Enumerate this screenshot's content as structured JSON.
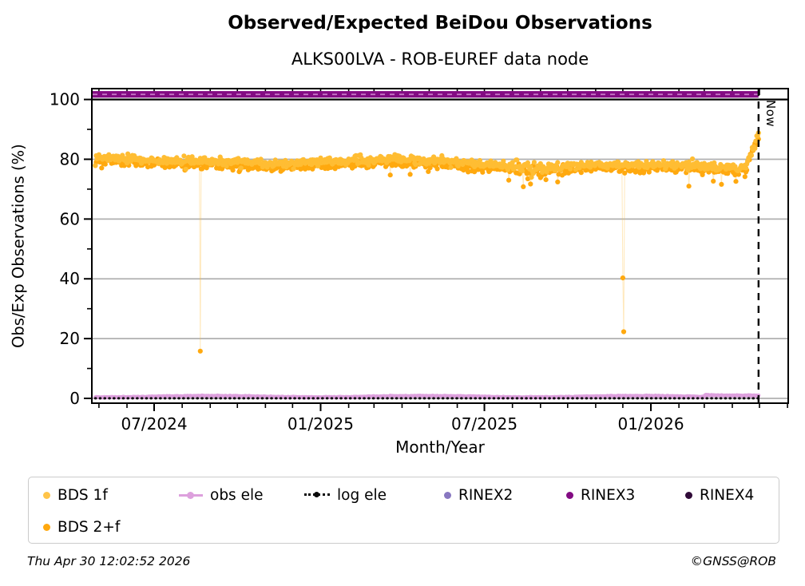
{
  "header": {
    "title": "Observed/Expected BeiDou Observations",
    "subtitle": "ALKS00LVA - ROB-EUREF data node"
  },
  "footer": {
    "timestamp": "Thu Apr 30 12:02:52 2026",
    "copyright": "©GNSS@ROB"
  },
  "legend": {
    "items": [
      {
        "label": "BDS 1f",
        "color": "#FFC449",
        "marker": "dot"
      },
      {
        "label": "obs ele",
        "color": "#DDA0DD",
        "marker": "line-dot"
      },
      {
        "label": "log ele",
        "color": "#0a0a0a",
        "marker": "dotted-line"
      },
      {
        "label": "RINEX2",
        "color": "#8877C0",
        "marker": "dot"
      },
      {
        "label": "RINEX3",
        "color": "#830B83",
        "marker": "dot"
      },
      {
        "label": "RINEX4",
        "color": "#300A38",
        "marker": "dot"
      },
      {
        "label": "BDS 2+f",
        "color": "#FFA80E",
        "marker": "dot"
      }
    ]
  },
  "chart_data": {
    "type": "scatter",
    "title": "Observed/Expected BeiDou Observations",
    "subtitle": "ALKS00LVA - ROB-EUREF data node",
    "xlabel": "Month/Year",
    "ylabel": "Obs/Exp Observations (%)",
    "ylim": [
      -1.6,
      103.6
    ],
    "x_range_dates": [
      "2024-04-24",
      "2026-06-02"
    ],
    "data_start_date": "2024-04-27",
    "now": {
      "date": "2026-04-30",
      "label": "Now"
    },
    "x_major_ticks": [
      {
        "label": "07/2024",
        "date": "2024-07-01"
      },
      {
        "label": "01/2025",
        "date": "2025-01-01"
      },
      {
        "label": "07/2025",
        "date": "2025-07-01"
      },
      {
        "label": "01/2026",
        "date": "2026-01-01"
      }
    ],
    "y_major_ticks": [
      0,
      20,
      40,
      60,
      80,
      100
    ],
    "y_minor_ticks": [
      10,
      30,
      50,
      70,
      90
    ],
    "grid": {
      "color": "#B0B0B0",
      "y_values": [
        0,
        20,
        40,
        60,
        80
      ]
    },
    "reference_line": {
      "y": 100,
      "color": "#000000"
    },
    "monthly_baseline": [
      [
        "2024-04",
        79.9
      ],
      [
        "2024-05",
        79.6
      ],
      [
        "2024-06",
        79.2
      ],
      [
        "2024-07",
        78.8
      ],
      [
        "2024-08",
        78.4
      ],
      [
        "2024-09",
        78.2
      ],
      [
        "2024-10",
        77.9
      ],
      [
        "2024-11",
        77.6
      ],
      [
        "2024-12",
        78.0
      ],
      [
        "2025-01",
        78.4
      ],
      [
        "2025-02",
        78.8
      ],
      [
        "2025-03",
        79.1
      ],
      [
        "2025-04",
        78.9
      ],
      [
        "2025-05",
        78.4
      ],
      [
        "2025-06",
        77.7
      ],
      [
        "2025-07",
        77.2
      ],
      [
        "2025-08",
        76.4
      ],
      [
        "2025-09",
        76.3
      ],
      [
        "2025-10",
        77.3
      ],
      [
        "2025-11",
        77.4
      ],
      [
        "2025-12",
        76.9
      ],
      [
        "2026-01",
        77.4
      ],
      [
        "2026-02",
        77.2
      ],
      [
        "2026-03",
        76.3
      ],
      [
        "2026-04",
        76.6
      ]
    ],
    "series": [
      {
        "name": "BDS 1f",
        "kind": "daily_scatter",
        "color": "#FFBD33",
        "offset": 1.0,
        "jitter": 1.25
      },
      {
        "name": "BDS 2+f",
        "kind": "daily_scatter",
        "color": "#FFA90F",
        "offset": -0.3,
        "jitter": 1.45,
        "outliers": [
          {
            "date": "2024-08-21",
            "value": 15.8
          },
          {
            "date": "2025-12-01",
            "value": 40.3
          },
          {
            "date": "2025-12-02",
            "value": 22.3
          }
        ],
        "low_days": [
          {
            "date": "2025-07-28",
            "value": 73.0
          },
          {
            "date": "2025-08-13",
            "value": 70.8
          },
          {
            "date": "2025-09-20",
            "value": 72.4
          },
          {
            "date": "2026-02-12",
            "value": 71.0
          },
          {
            "date": "2026-03-20",
            "value": 71.6
          },
          {
            "date": "2026-04-05",
            "value": 72.6
          }
        ],
        "final_rise": {
          "start_date": "2026-04-18",
          "end_value": 87.5
        }
      },
      {
        "name": "obs ele",
        "kind": "daily_line",
        "color": "#DDA0DD",
        "base": 0.6,
        "wobble": 0.22,
        "end_bump": 0.55,
        "end_bump_date": "2026-03-01"
      },
      {
        "name": "log ele",
        "kind": "dotted_line",
        "color": "#0a0a0a",
        "value": 0.05
      },
      {
        "name": "RINEX2",
        "kind": "legend_only",
        "color": "#8877C0"
      },
      {
        "name": "RINEX3",
        "kind": "band",
        "color": "#830B83",
        "value": 101.7,
        "half_thickness": 1.1,
        "dash_color": "#C77BC7"
      },
      {
        "name": "RINEX4",
        "kind": "legend_only",
        "color": "#300A38"
      }
    ]
  }
}
